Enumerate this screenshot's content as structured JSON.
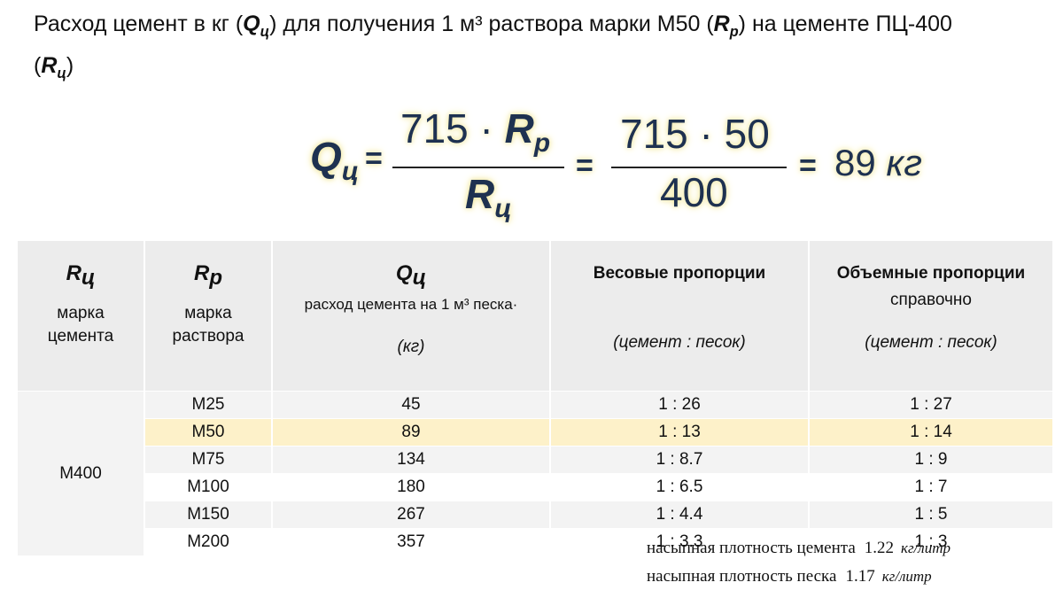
{
  "title": {
    "parts": [
      "Расход цемент в кг (",
      "Q",
      "ц",
      ") для получения 1 м³ раствора марки М50 (",
      "R",
      "р",
      ")  на цементе ПЦ-400 (",
      "R",
      "ц",
      ")"
    ]
  },
  "formula": {
    "lhs": "Q",
    "lhs_sub": "ц",
    "equals": "=",
    "num1": "715 · ",
    "num1_var": "R",
    "num1_sub": "р",
    "den1": "R",
    "den1_sub": "ц",
    "num2": "715 · 50",
    "den2": "400",
    "result": "89",
    "unit": "кг"
  },
  "table": {
    "header": [
      {
        "symbol": "R",
        "sub": "ц",
        "label": "марка цемента"
      },
      {
        "symbol": "R",
        "sub": "р",
        "label": "марка раствора"
      },
      {
        "symbol": "Q",
        "sub": "ц",
        "label": "расход цемента на 1 м³ песка·",
        "unit": "(кг)"
      },
      {
        "label": "Весовые пропорции",
        "unit": "(цемент : песок)"
      },
      {
        "label": "Объемные пропорции",
        "note": "справочно",
        "unit": "(цемент : песок)"
      }
    ],
    "group": "М400",
    "rows": [
      [
        "М25",
        "45",
        "1 : 26",
        "1 : 27"
      ],
      [
        "М50",
        "89",
        "1 : 13",
        "1 : 14"
      ],
      [
        "М75",
        "134",
        "1 : 8.7",
        "1 : 9"
      ],
      [
        "М100",
        "180",
        "1 : 6.5",
        "1 : 7"
      ],
      [
        "М150",
        "267",
        "1 : 4.4",
        "1 : 5"
      ],
      [
        "М200",
        "357",
        "1 : 3.3",
        "1 : 3"
      ]
    ]
  },
  "notes": [
    {
      "text": "насыпная плотность цемента",
      "value": "1.22",
      "unit": "кг/литр"
    },
    {
      "text": "насыпная плотность песка",
      "value": "1.17",
      "unit": "кг/литр"
    }
  ]
}
